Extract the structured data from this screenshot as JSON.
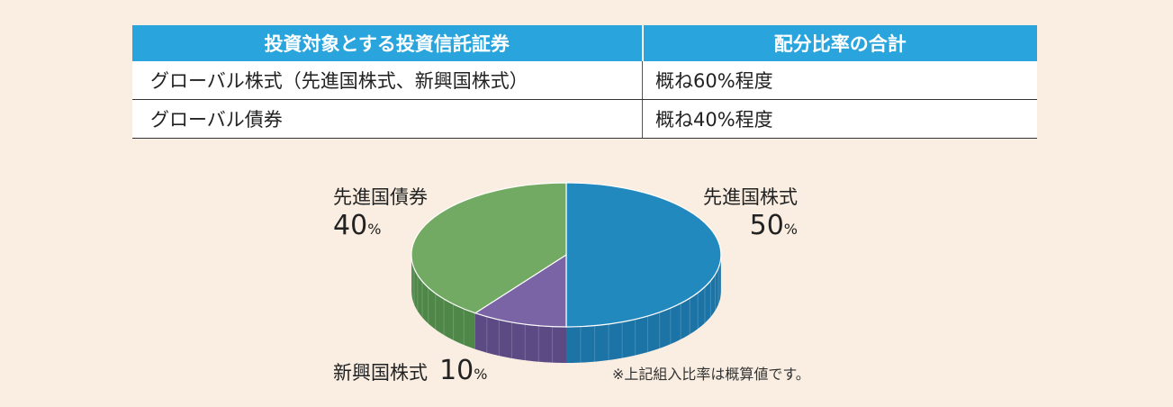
{
  "table": {
    "headers": [
      "投資対象とする投資信託証券",
      "配分比率の合計"
    ],
    "rows": [
      [
        "グローバル株式（先進国株式、新興国株式）",
        "概ね60%程度"
      ],
      [
        "グローバル債券",
        "概ね40%程度"
      ]
    ]
  },
  "chart_data": {
    "type": "pie",
    "slices": [
      {
        "label": "先進国株式",
        "value": 50,
        "color": "#2289bf",
        "side_color": "#1c73a6"
      },
      {
        "label": "新興国株式",
        "value": 10,
        "color": "#7a64a6",
        "side_color": "#5c4a85"
      },
      {
        "label": "先進国債券",
        "value": 40,
        "color": "#73aa63",
        "side_color": "#4e8748"
      }
    ],
    "unit": "%"
  },
  "labels": {
    "developed_equity": {
      "name": "先進国株式",
      "pct": "50"
    },
    "developed_bond": {
      "name": "先進国債券",
      "pct": "40"
    },
    "emerging_equity": {
      "name": "新興国株式",
      "pct": "10"
    }
  },
  "note": "※上記組入比率は概算値です。"
}
